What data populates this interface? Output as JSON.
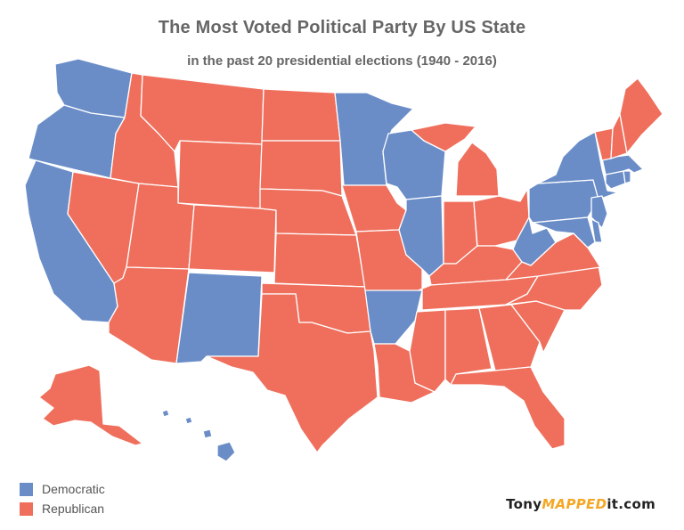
{
  "title": "The Most Voted Political Party By US State",
  "subtitle": "in the past 20 presidential elections (1940 - 2016)",
  "colors": {
    "democratic": "#6a8dc8",
    "republican": "#ef6f5c",
    "title": "#666666",
    "credit_accent": "#f5a623"
  },
  "legend": [
    {
      "label": "Democratic",
      "color": "#6a8dc8"
    },
    {
      "label": "Republican",
      "color": "#ef6f5c"
    }
  ],
  "credit": {
    "prefix": "Tony",
    "mid": "MAPPED",
    "suffix": "it.com"
  },
  "states": {
    "WA": "Democratic",
    "OR": "Democratic",
    "CA": "Democratic",
    "NV": "Republican",
    "ID": "Republican",
    "MT": "Republican",
    "WY": "Republican",
    "UT": "Republican",
    "AZ": "Republican",
    "NM": "Democratic",
    "CO": "Republican",
    "ND": "Republican",
    "SD": "Republican",
    "NE": "Republican",
    "KS": "Republican",
    "OK": "Republican",
    "TX": "Republican",
    "MN": "Democratic",
    "IA": "Republican",
    "MO": "Republican",
    "AR": "Democratic",
    "LA": "Republican",
    "WI": "Democratic",
    "IL": "Democratic",
    "MI": "Republican",
    "IN": "Republican",
    "OH": "Republican",
    "KY": "Republican",
    "TN": "Republican",
    "MS": "Republican",
    "AL": "Republican",
    "GA": "Republican",
    "FL": "Republican",
    "SC": "Republican",
    "NC": "Republican",
    "VA": "Republican",
    "WV": "Democratic",
    "PA": "Democratic",
    "NY": "Democratic",
    "NJ": "Democratic",
    "DE": "Democratic",
    "MD": "Democratic",
    "CT": "Democratic",
    "RI": "Democratic",
    "MA": "Democratic",
    "VT": "Republican",
    "NH": "Republican",
    "ME": "Republican",
    "AK": "Republican",
    "HI": "Democratic"
  }
}
